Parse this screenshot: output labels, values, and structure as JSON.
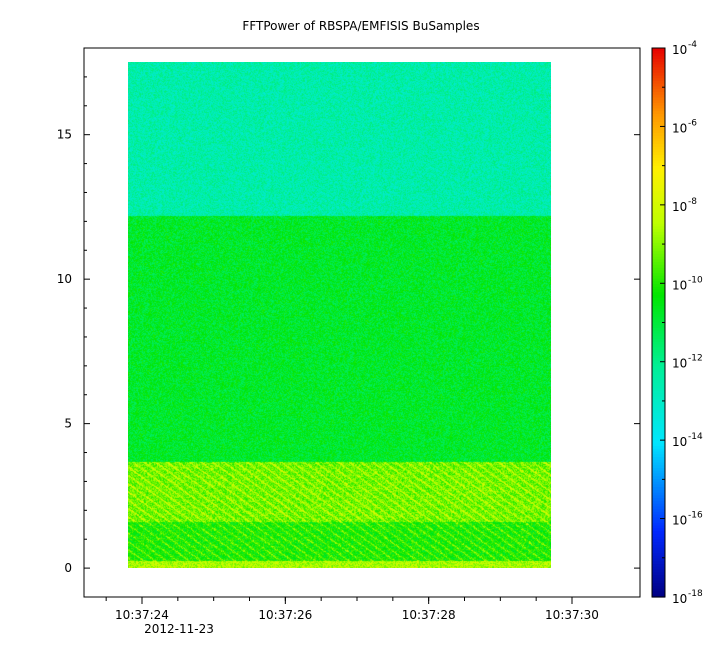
{
  "chart_data": {
    "type": "heatmap",
    "title": "FFTPower of RBSPA/EMFISIS  BuSamples",
    "date_label": "2012-11-23",
    "x_tick_labels": [
      "10:37:24",
      "10:37:26",
      "10:37:28",
      "10:37:30"
    ],
    "x_data_range_seconds": [
      23.8,
      29.7
    ],
    "y_ticks": [
      0,
      5,
      10,
      15
    ],
    "y_tick_labels": [
      "0",
      "5",
      "10",
      "15"
    ],
    "ylim": [
      -1,
      18
    ],
    "data_y_range": [
      0,
      17.5
    ],
    "y_band_levels_log10": [
      {
        "y_from": 12.2,
        "y_to": 17.5,
        "log10": -12.5
      },
      {
        "y_from": 3.7,
        "y_to": 12.2,
        "log10": -10.8
      },
      {
        "y_from": 1.6,
        "y_to": 3.7,
        "log10": -9.3
      },
      {
        "y_from": 0.25,
        "y_to": 1.6,
        "log10": -10.2
      },
      {
        "y_from": 0,
        "y_to": 0.25,
        "log10": -8.6
      }
    ],
    "colorbar": {
      "scale": "log",
      "range": [
        1e-18,
        0.0001
      ],
      "tick_exponents": [
        -4,
        -6,
        -8,
        -10,
        -12,
        -14,
        -16,
        -18
      ],
      "tick_base": "10"
    }
  }
}
